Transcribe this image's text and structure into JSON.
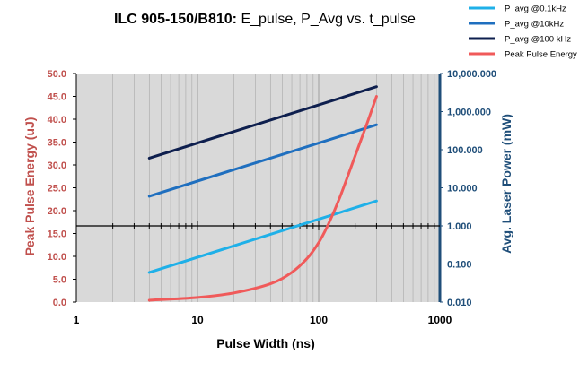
{
  "chart_data": {
    "type": "line",
    "title_main": "ILC 905-150/B810:",
    "title_rest": " E_pulse, P_Avg vs. t_pulse",
    "xlabel": "Pulse Width (ns)",
    "y_left_label": "Peak Pulse Energy (uJ)",
    "y_right_label": "Avg. Laser Power (mW)",
    "x_scale": "log",
    "xlim": [
      1,
      1000
    ],
    "x_ticks": [
      "1",
      "10",
      "100",
      "1000"
    ],
    "y_left_lim": [
      0,
      50
    ],
    "y_left_ticks": [
      "0.0",
      "5.0",
      "10.0",
      "15.0",
      "20.0",
      "25.0",
      "30.0",
      "35.0",
      "40.0",
      "45.0",
      "50.0"
    ],
    "y_right_scale": "log",
    "y_right_lim": [
      0.01,
      10000
    ],
    "y_right_ticks": [
      "0.010",
      "0.100",
      "1.000",
      "10.000",
      "100.000",
      "1,000.000",
      "10,000.000"
    ],
    "legend_position": "top-right",
    "colors": {
      "left_axis": "#c0504d",
      "right_axis": "#1f4e79",
      "plot_bg": "#d9d9d9"
    },
    "series": [
      {
        "name": "P_avg @0.1kHz",
        "axis": "right",
        "color": "#1fb0e8",
        "x": [
          4,
          300
        ],
        "y": [
          0.06,
          4.5
        ]
      },
      {
        "name": "P_avg @10kHz",
        "axis": "right",
        "color": "#1f6fbf",
        "x": [
          4,
          300
        ],
        "y": [
          6,
          450
        ]
      },
      {
        "name": "P_avg @100 kHz",
        "axis": "right",
        "color": "#0e1f4e",
        "x": [
          4,
          300
        ],
        "y": [
          60,
          4500
        ]
      },
      {
        "name": "Peak Pulse Energy",
        "axis": "left",
        "color": "#f05a5a",
        "x": [
          4,
          10,
          20,
          40,
          60,
          80,
          100,
          120,
          150,
          200,
          250,
          300
        ],
        "y": [
          0.4,
          1.0,
          2.0,
          4.0,
          6.5,
          9.5,
          13.0,
          17.0,
          23.0,
          32.0,
          39.0,
          45.0
        ]
      }
    ]
  }
}
